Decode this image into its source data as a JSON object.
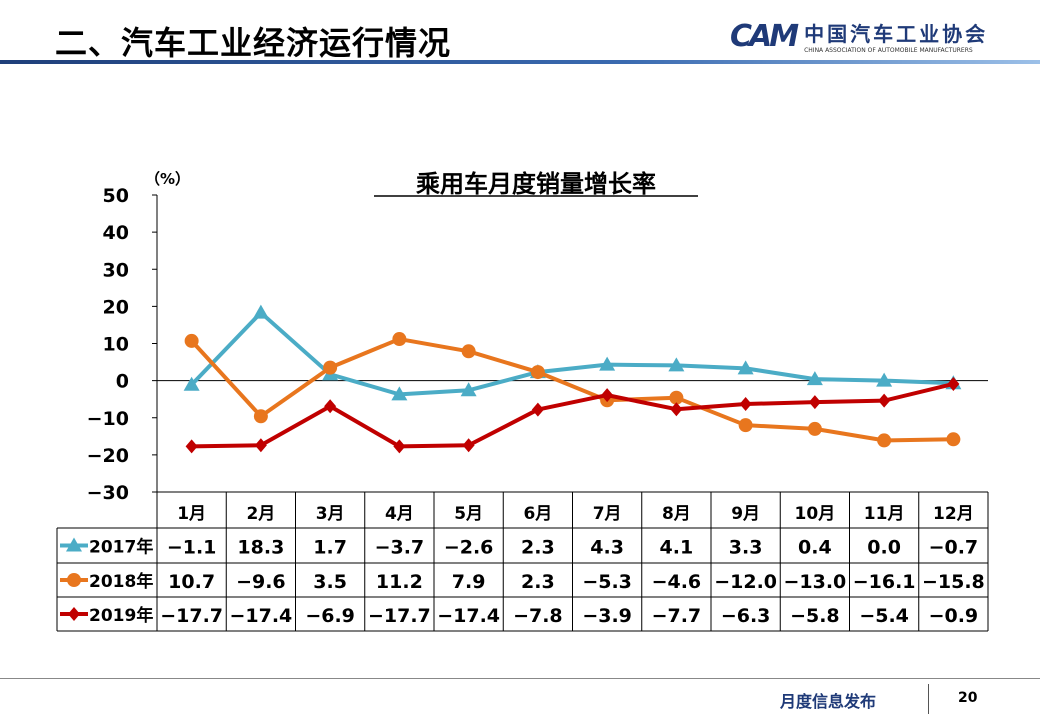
{
  "header": {
    "title": "二、汽车工业经济运行情况",
    "logo_mark": "CAM",
    "logo_cn": "中国汽车工业协会",
    "logo_en": "CHINA ASSOCIATION OF AUTOMOBILE MANUFACTURERS"
  },
  "footer": {
    "text": "月度信息发布",
    "page": "20"
  },
  "chart_data": {
    "type": "line",
    "title": "乘用车月度销量增长率",
    "ylabel": "（%）",
    "ylim": [
      -30,
      50
    ],
    "yticks": [
      "50",
      "40",
      "30",
      "20",
      "10",
      "0",
      "−10",
      "−20",
      "−30"
    ],
    "categories": [
      "1月",
      "2月",
      "3月",
      "4月",
      "5月",
      "6月",
      "7月",
      "8月",
      "9月",
      "10月",
      "11月",
      "12月"
    ],
    "series": [
      {
        "name": "2017年",
        "color": "#4bacc6",
        "marker": "triangle",
        "values": [
          -1.1,
          18.3,
          1.7,
          -3.7,
          -2.6,
          2.3,
          4.3,
          4.1,
          3.3,
          0.4,
          0.0,
          -0.7
        ],
        "labels": [
          "−1.1",
          "18.3",
          "1.7",
          "−3.7",
          "−2.6",
          "2.3",
          "4.3",
          "4.1",
          "3.3",
          "0.4",
          "0.0",
          "−0.7"
        ]
      },
      {
        "name": "2018年",
        "color": "#e8761e",
        "marker": "circle",
        "values": [
          10.7,
          -9.6,
          3.5,
          11.2,
          7.9,
          2.3,
          -5.3,
          -4.6,
          -12.0,
          -13.0,
          -16.1,
          -15.8
        ],
        "labels": [
          "10.7",
          "−9.6",
          "3.5",
          "11.2",
          "7.9",
          "2.3",
          "−5.3",
          "−4.6",
          "−12.0",
          "−13.0",
          "−16.1",
          "−15.8"
        ]
      },
      {
        "name": "2019年",
        "color": "#c00000",
        "marker": "diamond",
        "values": [
          -17.7,
          -17.4,
          -6.9,
          -17.7,
          -17.4,
          -7.8,
          -3.9,
          -7.7,
          -6.3,
          -5.8,
          -5.4,
          -0.9
        ],
        "labels": [
          "−17.7",
          "−17.4",
          "−6.9",
          "−17.7",
          "−17.4",
          "−7.8",
          "−3.9",
          "−7.7",
          "−6.3",
          "−5.8",
          "−5.4",
          "−0.9"
        ]
      }
    ],
    "legend": "table-left"
  }
}
